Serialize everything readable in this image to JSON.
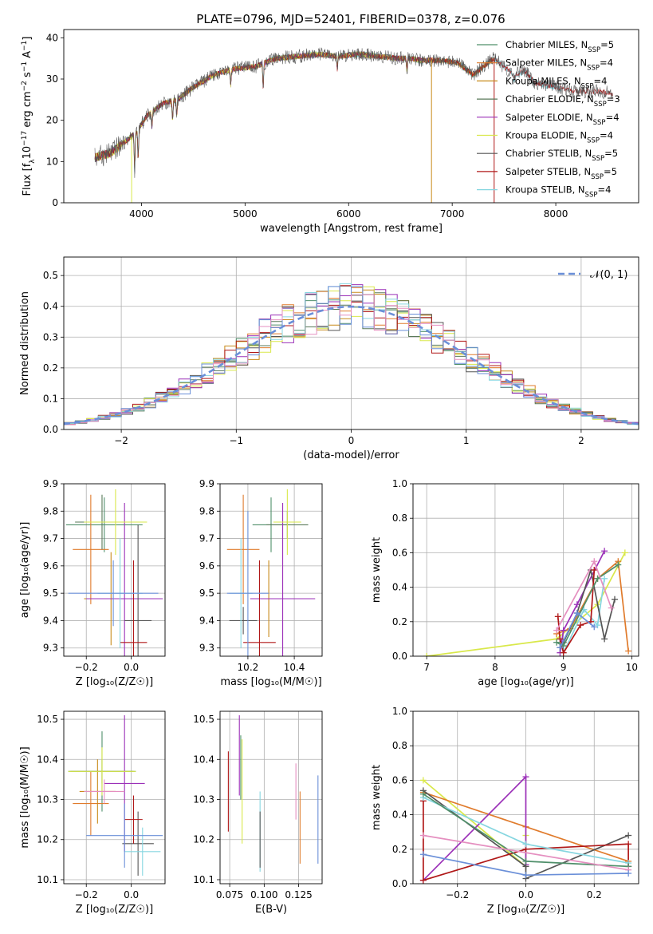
{
  "figure": {
    "title": "PLATE=0796, MJD=52401, FIBERID=0378, z=0.076"
  },
  "colors": {
    "Chabrier MILES": "#4f8f6a",
    "Salpeter MILES": "#e07b2c",
    "Kroupa MILES": "#c88a1a",
    "Chabrier ELODIE": "#5a7a5a",
    "Salpeter ELODIE": "#9b30b8",
    "Kroupa ELODIE": "#d9e84a",
    "Chabrier STELIB": "#555555",
    "Salpeter STELIB": "#b01818",
    "Kroupa STELIB": "#86d6e0",
    "normal": "#6a8fd8"
  },
  "chart_data": [
    {
      "type": "line",
      "id": "spectrum",
      "xlabel": "wavelength [Angstrom, rest frame]",
      "ylabel_parts": [
        "Flux [f",
        "λ",
        "10",
        "−17",
        " erg cm",
        "−2",
        " s",
        "−1",
        " A",
        "−1",
        "]"
      ],
      "xlim": [
        3250,
        8800
      ],
      "ylim": [
        0,
        42
      ],
      "xticks": [
        "4000",
        "5000",
        "6000",
        "7000",
        "8000"
      ],
      "yticks": [
        "0",
        "10",
        "20",
        "30",
        "40"
      ],
      "continuum_x": [
        3550,
        3700,
        3850,
        3950,
        4050,
        4200,
        4350,
        4500,
        4700,
        4900,
        5100,
        5300,
        5500,
        5700,
        5900,
        6100,
        6300,
        6500,
        6600,
        6700,
        6900,
        7050,
        7200,
        7400,
        7500,
        7600,
        7700,
        7800,
        8000,
        8200,
        8400,
        8550
      ],
      "continuum_y": [
        11,
        12,
        15,
        17,
        21,
        24,
        25,
        28,
        31,
        32.5,
        33,
        35,
        35.5,
        36,
        35.5,
        36,
        35.5,
        35,
        35,
        34.5,
        34.5,
        34,
        31,
        35,
        33,
        31,
        32,
        29,
        28,
        27,
        27,
        26.5
      ],
      "legend": [
        {
          "name": "Chabrier MILES",
          "label": "Chabrier MILES, N",
          "sub": "SSP",
          "eq": "=5"
        },
        {
          "name": "Salpeter MILES",
          "label": "Salpeter MILES, N",
          "sub": "SSP",
          "eq": "=4"
        },
        {
          "name": "Kroupa MILES",
          "label": "Kroupa MILES, N",
          "sub": "SSP",
          "eq": "=4"
        },
        {
          "name": "Chabrier ELODIE",
          "label": "Chabrier ELODIE, N",
          "sub": "SSP",
          "eq": "=3"
        },
        {
          "name": "Salpeter ELODIE",
          "label": "Salpeter ELODIE, N",
          "sub": "SSP",
          "eq": "=4"
        },
        {
          "name": "Kroupa ELODIE",
          "label": "Kroupa ELODIE, N",
          "sub": "SSP",
          "eq": "=4"
        },
        {
          "name": "Chabrier STELIB",
          "label": "Chabrier STELIB, N",
          "sub": "SSP",
          "eq": "=5"
        },
        {
          "name": "Salpeter STELIB",
          "label": "Salpeter STELIB, N",
          "sub": "SSP",
          "eq": "=5"
        },
        {
          "name": "Kroupa STELIB",
          "label": "Kroupa STELIB, N",
          "sub": "SSP",
          "eq": "=4"
        }
      ]
    },
    {
      "type": "bar",
      "id": "residuals",
      "xlabel": "(data-model)/error",
      "ylabel": "Normed distribution",
      "xlim": [
        -2.5,
        2.5
      ],
      "ylim": [
        0,
        0.56
      ],
      "xticks": [
        -2,
        -1,
        0,
        1,
        2
      ],
      "xtick_labels": [
        "−2",
        "−1",
        "0",
        "1",
        "2"
      ],
      "yticks": [
        0.0,
        0.1,
        0.2,
        0.3,
        0.4,
        0.5
      ],
      "ytick_labels": [
        "0.0",
        "0.1",
        "0.2",
        "0.3",
        "0.4",
        "0.5"
      ],
      "bin_width": 0.1,
      "legend_label": "𝒩(0, 1)",
      "normal_mean": 0,
      "normal_sd": 1
    },
    {
      "type": "scatter",
      "id": "age-vs-Z",
      "xlabel": "Z [log₁₀(Z/Z☉)]",
      "ylabel": "age  [log₁₀(age/yr)]",
      "xlim": [
        -0.3,
        0.15
      ],
      "ylim": [
        9.27,
        9.9
      ],
      "xticks": [
        -0.2,
        0.0
      ],
      "xtick_labels": [
        "−0.2",
        "0.0"
      ],
      "yticks": [
        9.3,
        9.4,
        9.5,
        9.6,
        9.7,
        9.8,
        9.9
      ],
      "ytick_labels": [
        "9.3",
        "9.4",
        "9.5",
        "9.6",
        "9.7",
        "9.8",
        "9.9"
      ],
      "points": [
        {
          "series": "Chabrier MILES",
          "x": -0.12,
          "xerr": 0.17,
          "y": 9.75,
          "yerr": 0.1
        },
        {
          "series": "Salpeter MILES",
          "x": -0.18,
          "xerr": 0.08,
          "y": 9.66,
          "yerr": 0.2
        },
        {
          "series": "Kroupa MILES",
          "x": -0.09,
          "xerr": 0.12,
          "y": 9.48,
          "yerr": 0.17
        },
        {
          "series": "Chabrier ELODIE",
          "x": -0.13,
          "xerr": 0.12,
          "y": 9.76,
          "yerr": 0.1
        },
        {
          "series": "Salpeter ELODIE",
          "x": -0.03,
          "xerr": 0.17,
          "y": 9.48,
          "yerr": 0.35
        },
        {
          "series": "Kroupa ELODIE",
          "x": -0.07,
          "xerr": 0.14,
          "y": 9.76,
          "yerr": 0.12
        },
        {
          "series": "Chabrier STELIB",
          "x": 0.03,
          "xerr": 0.06,
          "y": 9.4,
          "yerr": 0.35
        },
        {
          "series": "Salpeter STELIB",
          "x": 0.01,
          "xerr": 0.06,
          "y": 9.32,
          "yerr": 0.3
        },
        {
          "series": "Kroupa STELIB",
          "x": -0.05,
          "xerr": 0.1,
          "y": 9.5,
          "yerr": 0.2
        },
        {
          "series": "normal",
          "x": -0.08,
          "xerr": 0.2,
          "y": 9.5,
          "yerr": 0.12
        }
      ]
    },
    {
      "type": "scatter",
      "id": "age-vs-mass",
      "xlabel": "mass [log₁₀(M/M☉)]",
      "ylabel": "",
      "xlim": [
        10.08,
        10.52
      ],
      "ylim": [
        9.27,
        9.9
      ],
      "xticks": [
        10.2,
        10.4
      ],
      "xtick_labels": [
        "10.2",
        "10.4"
      ],
      "yticks": [
        9.3,
        9.4,
        9.5,
        9.6,
        9.7,
        9.8,
        9.9
      ],
      "ytick_labels": [
        "9.3",
        "9.4",
        "9.5",
        "9.6",
        "9.7",
        "9.8",
        "9.9"
      ],
      "points": [
        {
          "series": "Chabrier MILES",
          "x": 10.3,
          "xerr": 0.08,
          "y": 9.75,
          "yerr": 0.1
        },
        {
          "series": "Salpeter MILES",
          "x": 10.18,
          "xerr": 0.07,
          "y": 9.66,
          "yerr": 0.2
        },
        {
          "series": "Kroupa MILES",
          "x": 10.29,
          "xerr": 0.08,
          "y": 9.48,
          "yerr": 0.14
        },
        {
          "series": "Chabrier ELODIE",
          "x": 10.37,
          "xerr": 0.09,
          "y": 9.75,
          "yerr": 0.05
        },
        {
          "series": "Salpeter ELODIE",
          "x": 10.35,
          "xerr": 0.14,
          "y": 9.48,
          "yerr": 0.35
        },
        {
          "series": "Kroupa ELODIE",
          "x": 10.37,
          "xerr": 0.06,
          "y": 9.76,
          "yerr": 0.12
        },
        {
          "series": "Chabrier STELIB",
          "x": 10.18,
          "xerr": 0.06,
          "y": 9.4,
          "yerr": 0.05
        },
        {
          "series": "Salpeter STELIB",
          "x": 10.25,
          "xerr": 0.07,
          "y": 9.32,
          "yerr": 0.3
        },
        {
          "series": "Kroupa STELIB",
          "x": 10.17,
          "xerr": 0.05,
          "y": 9.5,
          "yerr": 0.2
        },
        {
          "series": "normal",
          "x": 10.2,
          "xerr": 0.09,
          "y": 9.5,
          "yerr": 0.3
        }
      ]
    },
    {
      "type": "line",
      "id": "weight-vs-age",
      "xlabel": "age  [log₁₀(age/yr)]",
      "ylabel": "mass weight",
      "xlim": [
        6.8,
        10.1
      ],
      "ylim": [
        0,
        1.0
      ],
      "xticks": [
        7,
        8,
        9,
        10
      ],
      "xtick_labels": [
        "7",
        "8",
        "9",
        "10"
      ],
      "yticks": [
        0.0,
        0.2,
        0.4,
        0.6,
        0.8,
        1.0
      ],
      "ytick_labels": [
        "0.0",
        "0.2",
        "0.4",
        "0.6",
        "0.8",
        "1.0"
      ],
      "series": [
        {
          "name": "Kroupa ELODIE",
          "x": [
            7.0,
            8.9,
            9.5,
            9.9
          ],
          "y": [
            0.0,
            0.1,
            0.3,
            0.6
          ]
        },
        {
          "name": "Salpeter MILES",
          "x": [
            8.9,
            9.1,
            9.5,
            9.8,
            9.95
          ],
          "y": [
            0.13,
            0.16,
            0.45,
            0.55,
            0.03
          ]
        },
        {
          "name": "Salpeter ELODIE",
          "x": [
            8.95,
            9.0,
            9.2,
            9.6
          ],
          "y": [
            0.02,
            0.15,
            0.3,
            0.61
          ]
        },
        {
          "name": "Kroupa STELIB",
          "x": [
            8.95,
            9.0,
            9.3,
            9.5,
            9.6
          ],
          "y": [
            0.1,
            0.02,
            0.27,
            0.18,
            0.45
          ]
        },
        {
          "name": "Chabrier STELIB",
          "x": [
            8.95,
            9.0,
            9.2,
            9.4,
            9.6,
            9.75
          ],
          "y": [
            0.05,
            0.08,
            0.25,
            0.5,
            0.1,
            0.33
          ]
        },
        {
          "name": "Salpeter STELIB",
          "x": [
            8.92,
            8.95,
            9.0,
            9.25,
            9.4,
            9.45
          ],
          "y": [
            0.23,
            0.1,
            0.02,
            0.18,
            0.2,
            0.5
          ]
        },
        {
          "name": "Chabrier MILES",
          "x": [
            8.9,
            9.0,
            9.5,
            9.8
          ],
          "y": [
            0.08,
            0.06,
            0.45,
            0.53
          ]
        },
        {
          "name": "pink",
          "x": [
            8.9,
            9.45,
            9.7
          ],
          "y": [
            0.15,
            0.55,
            0.28
          ]
        },
        {
          "name": "normal",
          "x": [
            8.95,
            9.2,
            9.45
          ],
          "y": [
            0.05,
            0.25,
            0.17
          ]
        }
      ]
    },
    {
      "type": "scatter",
      "id": "mass-vs-Z",
      "xlabel": "Z [log₁₀(Z/Z☉)]",
      "ylabel": "mass [log₁₀(M/M☉)]",
      "xlim": [
        -0.3,
        0.15
      ],
      "ylim": [
        10.09,
        10.52
      ],
      "xticks": [
        -0.2,
        0.0
      ],
      "xtick_labels": [
        "−0.2",
        "0.0"
      ],
      "yticks": [
        10.1,
        10.2,
        10.3,
        10.4,
        10.5
      ],
      "ytick_labels": [
        "10.1",
        "10.2",
        "10.3",
        "10.4",
        "10.5"
      ],
      "points": [
        {
          "series": "Chabrier MILES",
          "x": -0.13,
          "xerr": 0.15,
          "y": 10.37,
          "yerr": 0.1
        },
        {
          "series": "Salpeter MILES",
          "x": -0.18,
          "xerr": 0.08,
          "y": 10.29,
          "yerr": 0.08
        },
        {
          "series": "Kroupa MILES",
          "x": -0.15,
          "xerr": 0.08,
          "y": 10.32,
          "yerr": 0.08
        },
        {
          "series": "Chabrier ELODIE",
          "x": -0.13,
          "xerr": 0.14,
          "y": 10.37,
          "yerr": 0.03
        },
        {
          "series": "Salpeter ELODIE",
          "x": -0.03,
          "xerr": 0.09,
          "y": 10.34,
          "yerr": 0.17
        },
        {
          "series": "Kroupa ELODIE",
          "x": -0.13,
          "xerr": 0.15,
          "y": 10.37,
          "yerr": 0.06
        },
        {
          "series": "Chabrier STELIB",
          "x": 0.03,
          "xerr": 0.07,
          "y": 10.19,
          "yerr": 0.08
        },
        {
          "series": "Salpeter STELIB",
          "x": 0.01,
          "xerr": 0.04,
          "y": 10.25,
          "yerr": 0.06
        },
        {
          "series": "Kroupa STELIB",
          "x": 0.05,
          "xerr": 0.08,
          "y": 10.17,
          "yerr": 0.06
        },
        {
          "series": "normal",
          "x": -0.03,
          "xerr": 0.17,
          "y": 10.21,
          "yerr": 0.08
        },
        {
          "series": "pink",
          "x": -0.12,
          "xerr": 0.09,
          "y": 10.32,
          "yerr": 0.03
        }
      ]
    },
    {
      "type": "scatter",
      "id": "mass-vs-EBV",
      "xlabel": "E(B-V)",
      "ylabel": "",
      "xlim": [
        0.068,
        0.142
      ],
      "ylim": [
        10.09,
        10.52
      ],
      "xticks": [
        0.075,
        0.1,
        0.125
      ],
      "xtick_labels": [
        "0.075",
        "0.100",
        "0.125"
      ],
      "yticks": [
        10.1,
        10.2,
        10.3,
        10.4,
        10.5
      ],
      "ytick_labels": [
        "10.1",
        "10.2",
        "10.3",
        "10.4",
        "10.5"
      ],
      "points": [
        {
          "series": "Salpeter STELIB",
          "x": 0.074,
          "y": 10.32,
          "yerr": 0.1
        },
        {
          "series": "Salpeter ELODIE",
          "x": 0.082,
          "y": 10.41,
          "yerr": 0.1
        },
        {
          "series": "Chabrier MILES",
          "x": 0.083,
          "y": 10.38,
          "yerr": 0.08
        },
        {
          "series": "Kroupa ELODIE",
          "x": 0.084,
          "y": 10.32,
          "yerr": 0.13
        },
        {
          "series": "Kroupa STELIB",
          "x": 0.097,
          "y": 10.22,
          "yerr": 0.1
        },
        {
          "series": "Chabrier STELIB",
          "x": 0.097,
          "y": 10.2,
          "yerr": 0.07
        },
        {
          "series": "pink",
          "x": 0.123,
          "y": 10.32,
          "yerr": 0.07
        },
        {
          "series": "Salpeter MILES",
          "x": 0.126,
          "y": 10.23,
          "yerr": 0.09
        },
        {
          "series": "normal",
          "x": 0.139,
          "y": 10.25,
          "yerr": 0.11
        }
      ]
    },
    {
      "type": "line",
      "id": "weight-vs-Z",
      "xlabel": "Z [log₁₀(Z/Z☉)]",
      "ylabel": "mass weight",
      "xlim": [
        -0.33,
        0.33
      ],
      "ylim": [
        0,
        1.0
      ],
      "xticks": [
        -0.2,
        0.0,
        0.2
      ],
      "xtick_labels": [
        "−0.2",
        "0.0",
        "0.2"
      ],
      "yticks": [
        0.0,
        0.2,
        0.4,
        0.6,
        0.8,
        1.0
      ],
      "ytick_labels": [
        "0.0",
        "0.2",
        "0.4",
        "0.6",
        "0.8",
        "1.0"
      ],
      "series": [
        {
          "name": "Kroupa ELODIE",
          "x": [
            -0.3,
            0.0,
            0.0
          ],
          "y": [
            0.6,
            0.1,
            0.28
          ]
        },
        {
          "name": "Salpeter MILES",
          "x": [
            -0.3,
            0.0,
            0.3
          ],
          "y": [
            0.53,
            0.33,
            0.13
          ]
        },
        {
          "name": "Salpeter ELODIE",
          "x": [
            -0.3,
            0.0,
            0.0
          ],
          "y": [
            0.02,
            0.62,
            0.11
          ]
        },
        {
          "name": "Chabrier STELIB",
          "x": [
            -0.3,
            0.0,
            0.0,
            0.3
          ],
          "y": [
            0.54,
            0.1,
            0.03,
            0.28
          ]
        },
        {
          "name": "Salpeter STELIB",
          "x": [
            -0.3,
            -0.3,
            0.0,
            0.3,
            0.3
          ],
          "y": [
            0.48,
            0.02,
            0.2,
            0.23,
            0.1
          ]
        },
        {
          "name": "Kroupa STELIB",
          "x": [
            -0.3,
            0.0,
            0.3
          ],
          "y": [
            0.5,
            0.23,
            0.12
          ]
        },
        {
          "name": "Chabrier MILES",
          "x": [
            -0.3,
            0.0,
            0.3
          ],
          "y": [
            0.52,
            0.13,
            0.1
          ]
        },
        {
          "name": "pink",
          "x": [
            -0.3,
            0.3
          ],
          "y": [
            0.28,
            0.08
          ]
        },
        {
          "name": "normal",
          "x": [
            -0.3,
            0.0,
            0.3
          ],
          "y": [
            0.17,
            0.05,
            0.06
          ]
        }
      ]
    }
  ]
}
